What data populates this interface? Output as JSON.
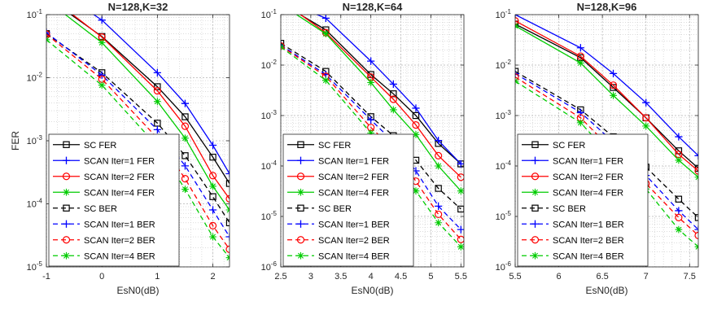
{
  "chart_data": [
    {
      "type": "line",
      "title": "N=128,K=32",
      "xlabel": "EsN0(dB)",
      "ylabel": "FER",
      "yscale": "log",
      "xlim": [
        -1,
        2.3
      ],
      "ylim": [
        1e-05,
        0.1
      ],
      "xticks": [
        -1,
        0,
        1,
        2
      ],
      "xtick_labels": [
        "-1",
        "0",
        "1",
        "2"
      ],
      "yticks": [
        1e-05,
        0.0001,
        0.001,
        0.01,
        0.1
      ],
      "ytick_labels": [
        "10-5",
        "10-4",
        "10-3",
        "10-2",
        "10-1"
      ],
      "grid": true,
      "legend_position": "bottom-left",
      "x": [
        -1,
        0,
        1,
        1.5,
        2,
        2.3
      ],
      "series": [
        {
          "name": "SC FER",
          "color": "#000000",
          "marker": "square",
          "dashed": false,
          "values": [
            0.19,
            0.045,
            0.0072,
            0.0024,
            0.00055,
            0.00021
          ]
        },
        {
          "name": "SCAN Iter=1 FER",
          "color": "#0000ff",
          "marker": "plus",
          "dashed": false,
          "values": [
            0.32,
            0.082,
            0.012,
            0.0039,
            0.00085,
            0.0003
          ]
        },
        {
          "name": "SCAN Iter=2 FER",
          "color": "#ff0000",
          "marker": "circle",
          "dashed": false,
          "values": [
            0.21,
            0.044,
            0.0062,
            0.0017,
            0.00028,
            0.00012
          ]
        },
        {
          "name": "SCAN Iter=4 FER",
          "color": "#00cc00",
          "marker": "star",
          "dashed": false,
          "values": [
            0.17,
            0.036,
            0.0042,
            0.0011,
            0.00019,
            8e-05
          ]
        },
        {
          "name": "SC BER",
          "color": "#000000",
          "marker": "square",
          "dashed": true,
          "values": [
            0.05,
            0.012,
            0.0019,
            0.00058,
            0.00013,
            5e-05
          ]
        },
        {
          "name": "SCAN Iter=1 BER",
          "color": "#0000ff",
          "marker": "plus",
          "dashed": true,
          "values": [
            0.052,
            0.011,
            0.0015,
            0.0004,
            8e-05,
            3e-05
          ]
        },
        {
          "name": "SCAN Iter=2 BER",
          "color": "#ff0000",
          "marker": "circle",
          "dashed": true,
          "values": [
            0.049,
            0.0095,
            0.0011,
            0.00025,
            4.5e-05,
            1.9e-05
          ]
        },
        {
          "name": "SCAN Iter=4 BER",
          "color": "#00cc00",
          "marker": "star",
          "dashed": true,
          "values": [
            0.04,
            0.0076,
            0.00082,
            0.00017,
            3e-05,
            1.4e-05
          ]
        }
      ]
    },
    {
      "type": "line",
      "title": "N=128,K=64",
      "xlabel": "EsN0(dB)",
      "ylabel": "",
      "yscale": "log",
      "xlim": [
        2.5,
        5.55
      ],
      "ylim": [
        1e-06,
        0.1
      ],
      "xticks": [
        2.5,
        3,
        3.5,
        4,
        4.5,
        5,
        5.5
      ],
      "xtick_labels": [
        "2.5",
        "3",
        "3.5",
        "4",
        "4.5",
        "5",
        "5.5"
      ],
      "yticks": [
        1e-06,
        1e-05,
        0.0001,
        0.001,
        0.01,
        0.1
      ],
      "ytick_labels": [
        "10-6",
        "10-5",
        "10-4",
        "10-3",
        "10-2",
        "10-1"
      ],
      "grid": true,
      "legend_position": "bottom-left",
      "x": [
        2.5,
        3.25,
        4,
        4.375,
        4.75,
        5.125,
        5.5
      ],
      "series": [
        {
          "name": "SC FER",
          "color": "#000000",
          "marker": "square",
          "dashed": false,
          "values": [
            0.17,
            0.05,
            0.0065,
            0.0027,
            0.001,
            0.00028,
            0.00011
          ]
        },
        {
          "name": "SCAN Iter=1 FER",
          "color": "#0000ff",
          "marker": "plus",
          "dashed": false,
          "values": [
            0.2,
            0.085,
            0.012,
            0.0042,
            0.0014,
            0.00032,
            0.00011
          ]
        },
        {
          "name": "SCAN Iter=2 FER",
          "color": "#ff0000",
          "marker": "circle",
          "dashed": false,
          "values": [
            0.19,
            0.044,
            0.0058,
            0.0021,
            0.00065,
            0.00016,
            6e-05
          ]
        },
        {
          "name": "SCAN Iter=4 FER",
          "color": "#00cc00",
          "marker": "star",
          "dashed": false,
          "values": [
            0.16,
            0.042,
            0.0045,
            0.0013,
            0.00042,
            0.0001,
            3.2e-05
          ]
        },
        {
          "name": "SC BER",
          "color": "#000000",
          "marker": "square",
          "dashed": true,
          "values": [
            0.027,
            0.0075,
            0.00095,
            0.0004,
            0.00013,
            3.6e-05,
            1.4e-05
          ]
        },
        {
          "name": "SCAN Iter=1 BER",
          "color": "#0000ff",
          "marker": "plus",
          "dashed": true,
          "values": [
            0.025,
            0.0065,
            0.00082,
            0.0003,
            8e-05,
            1.6e-05,
            5.5e-06
          ]
        },
        {
          "name": "SCAN Iter=2 BER",
          "color": "#ff0000",
          "marker": "circle",
          "dashed": true,
          "values": [
            0.024,
            0.006,
            0.00058,
            0.00022,
            5e-05,
            1.1e-05,
            3.5e-06
          ]
        },
        {
          "name": "SCAN Iter=4 BER",
          "color": "#00cc00",
          "marker": "star",
          "dashed": true,
          "values": [
            0.023,
            0.005,
            0.00045,
            0.00014,
            3.2e-05,
            7.5e-06,
            2.5e-06
          ]
        }
      ]
    },
    {
      "type": "line",
      "title": "N=128,K=96",
      "xlabel": "EsN0(dB)",
      "ylabel": "",
      "yscale": "log",
      "xlim": [
        5.5,
        7.6
      ],
      "ylim": [
        1e-06,
        0.1
      ],
      "xticks": [
        5.5,
        6,
        6.5,
        7,
        7.5
      ],
      "xtick_labels": [
        "5.5",
        "6",
        "6.5",
        "7",
        "7.5"
      ],
      "yticks": [
        1e-06,
        1e-05,
        0.0001,
        0.001,
        0.01,
        0.1
      ],
      "ytick_labels": [
        "10-6",
        "10-5",
        "10-4",
        "10-3",
        "10-2",
        "10-1"
      ],
      "grid": true,
      "legend_position": "bottom-left",
      "x": [
        5.5,
        6.25,
        6.625,
        7,
        7.375,
        7.6
      ],
      "series": [
        {
          "name": "SC FER",
          "color": "#000000",
          "marker": "square",
          "dashed": false,
          "values": [
            0.065,
            0.014,
            0.0036,
            0.0009,
            0.0002,
            9e-05
          ]
        },
        {
          "name": "SCAN Iter=1 FER",
          "color": "#0000ff",
          "marker": "plus",
          "dashed": false,
          "values": [
            0.1,
            0.022,
            0.0068,
            0.0018,
            0.00038,
            0.00016
          ]
        },
        {
          "name": "SCAN Iter=2 FER",
          "color": "#ff0000",
          "marker": "circle",
          "dashed": false,
          "values": [
            0.075,
            0.015,
            0.004,
            0.0009,
            0.00017,
            8e-05
          ]
        },
        {
          "name": "SCAN Iter=4 FER",
          "color": "#00cc00",
          "marker": "star",
          "dashed": false,
          "values": [
            0.06,
            0.011,
            0.0025,
            0.00062,
            0.00013,
            6e-05
          ]
        },
        {
          "name": "SC BER",
          "color": "#000000",
          "marker": "square",
          "dashed": true,
          "values": [
            0.0075,
            0.0013,
            0.00038,
            9.5e-05,
            2.2e-05,
            9.5e-06
          ]
        },
        {
          "name": "SCAN Iter=1 BER",
          "color": "#0000ff",
          "marker": "plus",
          "dashed": true,
          "values": [
            0.0068,
            0.00115,
            0.0003,
            6.5e-05,
            1.3e-05,
            5.5e-06
          ]
        },
        {
          "name": "SCAN Iter=2 BER",
          "color": "#ff0000",
          "marker": "circle",
          "dashed": true,
          "values": [
            0.0058,
            0.0009,
            0.0002,
            4.5e-05,
            9.5e-06,
            4.2e-06
          ]
        },
        {
          "name": "SCAN Iter=4 BER",
          "color": "#00cc00",
          "marker": "star",
          "dashed": true,
          "values": [
            0.0048,
            0.00072,
            0.00014,
            3.5e-05,
            5.5e-06,
            2.5e-06
          ]
        }
      ]
    }
  ]
}
